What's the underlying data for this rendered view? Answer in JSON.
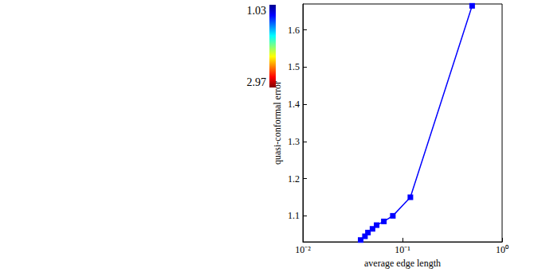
{
  "chart_data": {
    "type": "line",
    "x_label": "average edge length",
    "y_label": "quasi-conformal error",
    "x": [
      0.5,
      0.12,
      0.08,
      0.065,
      0.055,
      0.05,
      0.045,
      0.042,
      0.038
    ],
    "values": [
      1.665,
      1.15,
      1.1,
      1.085,
      1.075,
      1.065,
      1.055,
      1.045,
      1.035
    ],
    "color": "#0000ff",
    "marker": "square",
    "log": "x",
    "xlim": [
      0.01,
      1
    ],
    "xticks": [
      {
        "value": 0.01,
        "label": "10⁻²"
      },
      {
        "value": 0.1,
        "label": "10⁻¹"
      },
      {
        "value": 1,
        "label": "10⁰"
      }
    ],
    "ylim": [
      1.03,
      1.67
    ],
    "yticks": [
      1.1,
      1.2,
      1.3,
      1.4,
      1.5,
      1.6
    ],
    "grid": false,
    "colorbar": {
      "range": [
        1.03,
        2.97
      ],
      "ticks": [
        1.03,
        2.97
      ]
    }
  }
}
